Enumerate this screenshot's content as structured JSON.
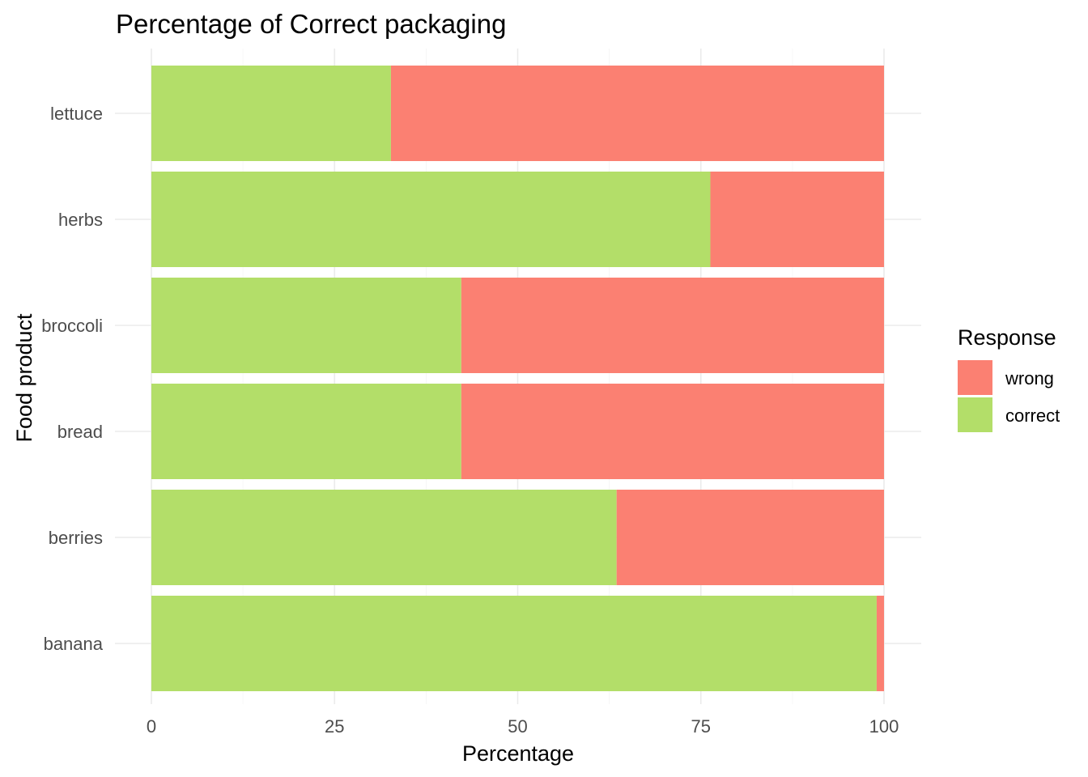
{
  "chart_data": {
    "type": "bar",
    "orientation": "horizontal",
    "stacked": true,
    "title": "Percentage of Correct packaging",
    "xlabel": "Percentage",
    "ylabel": "Food product",
    "xlim": [
      0,
      100
    ],
    "x_ticks": [
      "0",
      "25",
      "50",
      "75",
      "100"
    ],
    "categories": [
      "banana",
      "berries",
      "bread",
      "broccoli",
      "herbs",
      "lettuce"
    ],
    "series": [
      {
        "name": "correct",
        "color": "#b3de69",
        "values": [
          99,
          63.5,
          42.3,
          42.3,
          76.3,
          32.7
        ]
      },
      {
        "name": "wrong",
        "color": "#fb8072",
        "values": [
          1,
          36.5,
          57.7,
          57.7,
          23.7,
          67.3
        ]
      }
    ],
    "grid": true,
    "legend": {
      "title": "Response",
      "position": "right",
      "order": [
        "wrong",
        "correct"
      ]
    }
  }
}
